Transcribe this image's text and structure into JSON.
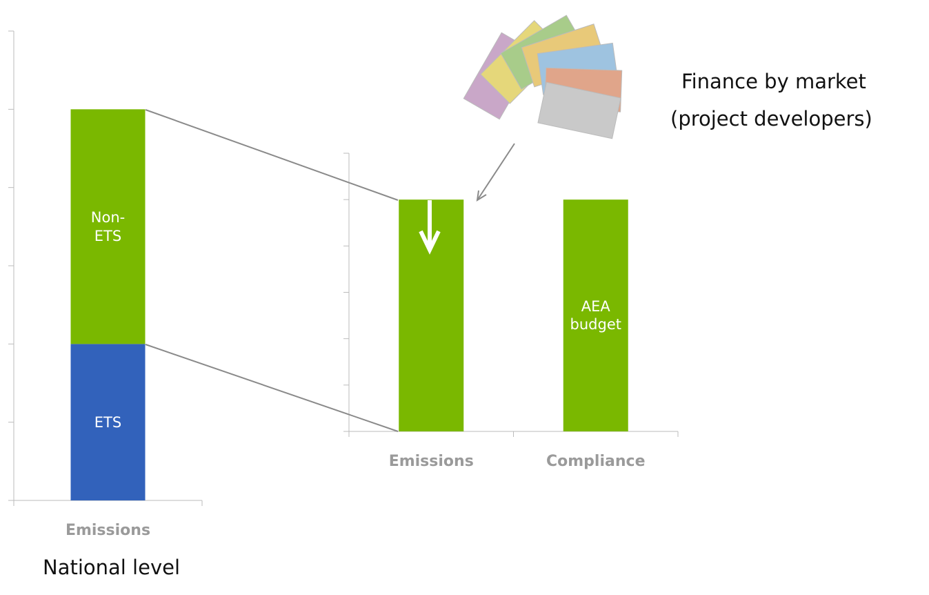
{
  "chart_data": [
    {
      "type": "stacked_bar",
      "categories": [
        "Emissions"
      ],
      "series": [
        {
          "name": "ETS",
          "color": "#3262bb",
          "values": [
            2
          ]
        },
        {
          "name": "Non-ETS",
          "color": "#7ab800",
          "values": [
            3
          ]
        }
      ],
      "ylim": [
        0,
        6
      ],
      "yticks": [
        0,
        1,
        2,
        3,
        4,
        5,
        6
      ],
      "caption": "National level"
    },
    {
      "type": "bar",
      "categories": [
        "Emissions",
        "Compliance"
      ],
      "values": [
        5,
        5
      ],
      "color": "#7ab800",
      "ylim": [
        0,
        6
      ],
      "yticks": [
        0,
        1,
        2,
        3,
        4,
        5,
        6
      ],
      "annotation": "AEA budget"
    }
  ],
  "annotation_lines": [
    "Finance by market",
    "(project developers)"
  ]
}
